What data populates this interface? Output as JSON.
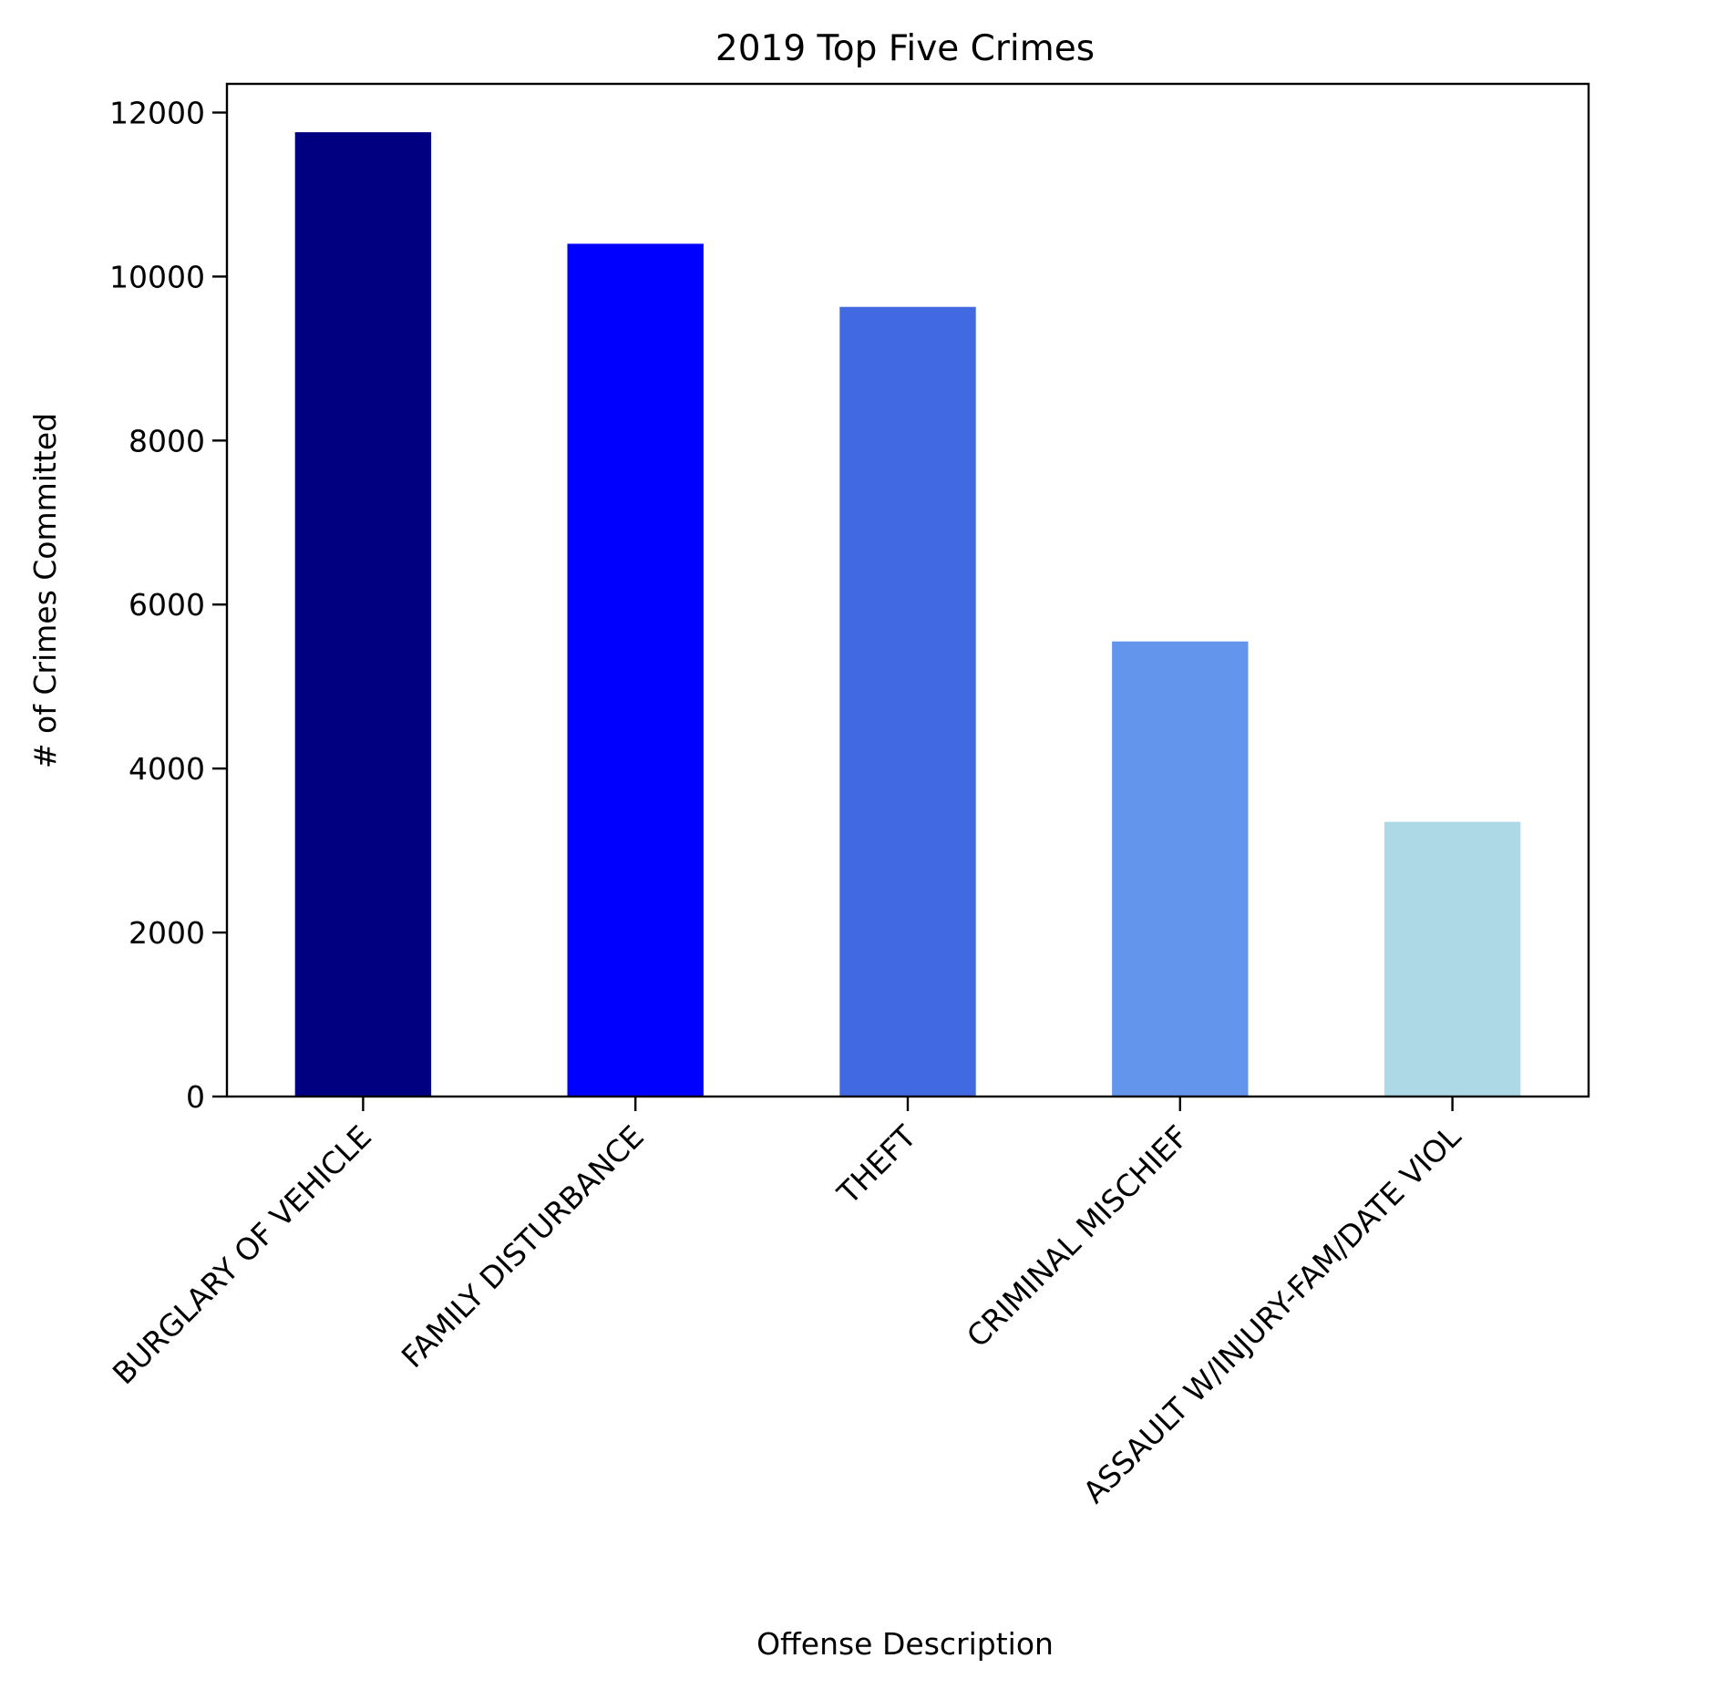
{
  "chart_data": {
    "type": "bar",
    "title": "2019 Top Five Crimes",
    "xlabel": "Offense Description",
    "ylabel": "# of Crimes Committed",
    "categories": [
      "BURGLARY OF VEHICLE",
      "FAMILY DISTURBANCE",
      "THEFT",
      "CRIMINAL MISCHIEF",
      "ASSAULT W/INJURY-FAM/DATE VIOL"
    ],
    "values": [
      11760,
      10400,
      9630,
      5550,
      3350
    ],
    "colors": [
      "#000080",
      "#0000ff",
      "#4169e1",
      "#6495ed",
      "#add8e6"
    ],
    "ylim": [
      0,
      12350
    ],
    "yticks": [
      0,
      2000,
      4000,
      6000,
      8000,
      10000,
      12000
    ],
    "grid": false,
    "legend": false
  }
}
